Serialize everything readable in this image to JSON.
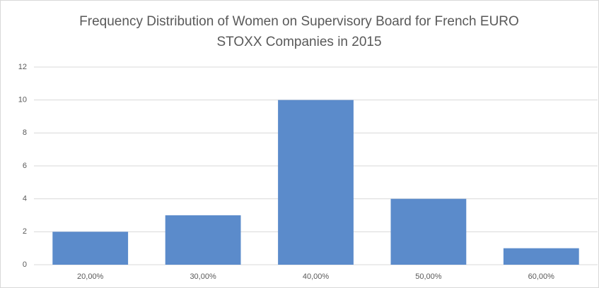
{
  "chart_data": {
    "type": "bar",
    "title": "Frequency Distribution of Women on Supervisory Board for French EURO STOXX Companies in 2015",
    "categories": [
      "20,00%",
      "30,00%",
      "40,00%",
      "50,00%",
      "60,00%"
    ],
    "values": [
      2,
      3,
      10,
      4,
      1
    ],
    "color": "#5b8bcb",
    "ylim": [
      0,
      12
    ],
    "yticks": [
      0,
      2,
      4,
      6,
      8,
      10,
      12
    ],
    "grid": true
  }
}
